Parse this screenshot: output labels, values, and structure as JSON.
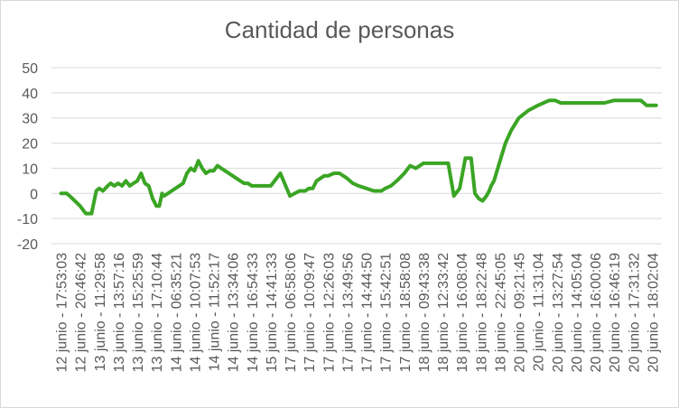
{
  "chart_data": {
    "type": "line",
    "title": "Cantidad de personas",
    "xlabel": "",
    "ylabel": "",
    "ylim": [
      -20,
      50
    ],
    "yticks": [
      -20,
      -10,
      0,
      10,
      20,
      30,
      40,
      50
    ],
    "grid": true,
    "legend": "none",
    "colors": {
      "line": "#3aa524",
      "grid": "#d9d9d9",
      "text": "#595959"
    },
    "x_tick_labels": [
      "12 junio - 17:53:03",
      "12 junio - 20:46:42",
      "13 junio - 11:29:58",
      "13 junio - 13:57:16",
      "13 junio - 15:25:59",
      "13 junio - 17:10:44",
      "14 junio - 06:35:21",
      "14 junio - 10:07:53",
      "14 junio - 11:52:17",
      "14 junio - 13:34:06",
      "14 junio - 16:54:33",
      "15 junio - 14:41:33",
      "17 junio - 06:58:06",
      "17 junio - 10:09:47",
      "17 junio - 12:26:03",
      "17 junio - 13:49:56",
      "17 junio - 14:44:50",
      "17 junio - 15:42:51",
      "17 junio - 18:58:08",
      "18 junio - 09:43:38",
      "18 junio - 12:33:42",
      "18 junio - 16:08:04",
      "18 junio - 18:22:48",
      "18 junio - 22:45:05",
      "20 junio - 09:21:45",
      "20 junio - 11:31:04",
      "20 junio - 13:27:54",
      "20 junio - 14:05:04",
      "20 junio - 16:00:06",
      "20 junio - 16:46:19",
      "20 junio - 17:31:32",
      "20 junio - 18:02:04"
    ],
    "series": [
      {
        "x": [
          0,
          0.3,
          0.6,
          1,
          1.3,
          1.6,
          1.85,
          2,
          2.2,
          2.45,
          2.6,
          2.8,
          3,
          3.2,
          3.4,
          3.6,
          3.8,
          4,
          4.2,
          4.4,
          4.6,
          4.8,
          5,
          5.15,
          5.3,
          5.4,
          5.6,
          5.8,
          6,
          6.2,
          6.4,
          6.6,
          6.8,
          7,
          7.2,
          7.4,
          7.6,
          7.8,
          8,
          8.2,
          8.4,
          8.6,
          8.8,
          9,
          9.2,
          9.4,
          9.6,
          9.8,
          10,
          10.3,
          10.6,
          11,
          11.5,
          12,
          12.5,
          12.8,
          13,
          13.2,
          13.4,
          13.6,
          13.8,
          14,
          14.3,
          14.6,
          15,
          15.3,
          15.6,
          16,
          16.4,
          16.8,
          17,
          17.3,
          17.6,
          18,
          18.3,
          18.6,
          19,
          19.3,
          19.6,
          20,
          20.3,
          20.6,
          20.9,
          21.2,
          21.5,
          21.7,
          21.9,
          22.1,
          22.3,
          22.45,
          22.55,
          22.7,
          22.9,
          23.1,
          23.3,
          23.6,
          24,
          24.5,
          25,
          25.3,
          25.6,
          25.9,
          26.2,
          26.5,
          26.8,
          27.1,
          27.4,
          27.7,
          28,
          28.5,
          29,
          29.3,
          29.6,
          30,
          30.4,
          30.7,
          31,
          31.2
        ],
        "values": [
          0,
          0,
          -2,
          -5,
          -8,
          -8,
          1,
          2,
          1,
          3,
          4,
          3,
          4,
          3,
          5,
          3,
          4,
          5,
          8,
          4,
          3,
          -2,
          -5,
          -5,
          0,
          -1,
          0,
          1,
          2,
          3,
          4,
          8,
          10,
          9,
          13,
          10,
          8,
          9,
          9,
          11,
          10,
          9,
          8,
          7,
          6,
          5,
          4,
          4,
          3,
          3,
          3,
          3,
          8,
          -1,
          1,
          1,
          2,
          2,
          5,
          6,
          7,
          7,
          8,
          8,
          6,
          4,
          3,
          2,
          1,
          1,
          2,
          3,
          5,
          8,
          11,
          10,
          12,
          12,
          12,
          12,
          12,
          -1,
          2,
          14,
          14,
          0,
          -2,
          -3,
          -1,
          1,
          3,
          5,
          10,
          15,
          20,
          25,
          30,
          33,
          35,
          36,
          37,
          37,
          36,
          36,
          36,
          36,
          36,
          36,
          36,
          36,
          37,
          37,
          37,
          37,
          37,
          35,
          35,
          35
        ]
      }
    ]
  }
}
